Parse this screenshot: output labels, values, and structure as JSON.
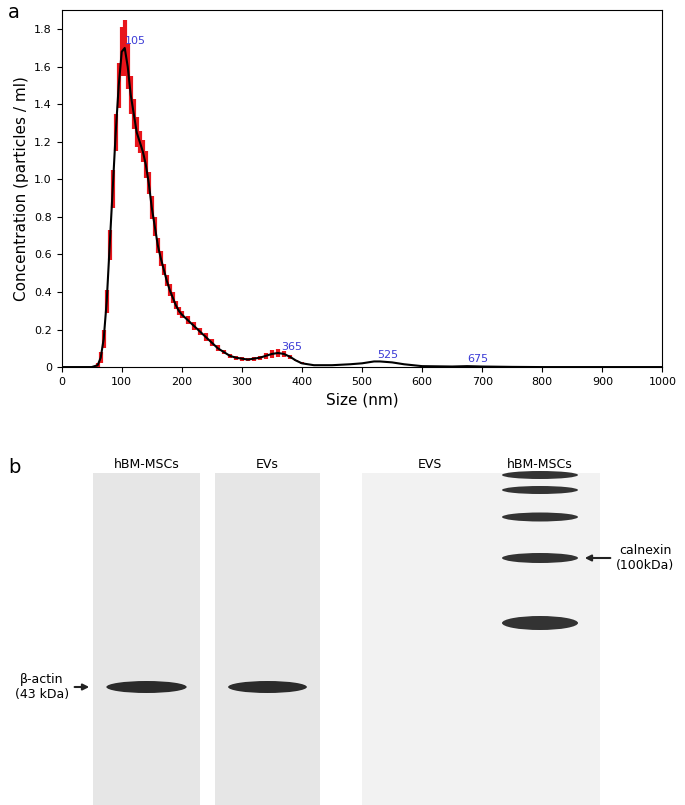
{
  "chart_data": {
    "type": "line",
    "x_label": "Size (nm)",
    "y_label": "Concentration (particles / ml)",
    "x": [
      0,
      50,
      60,
      65,
      70,
      75,
      80,
      85,
      90,
      95,
      100,
      105,
      110,
      115,
      120,
      125,
      130,
      135,
      140,
      145,
      150,
      155,
      160,
      165,
      170,
      175,
      180,
      185,
      190,
      195,
      200,
      210,
      220,
      230,
      240,
      250,
      260,
      270,
      280,
      290,
      300,
      310,
      320,
      330,
      340,
      350,
      360,
      370,
      380,
      390,
      400,
      420,
      450,
      480,
      500,
      520,
      530,
      550,
      570,
      600,
      650,
      675,
      700,
      750,
      800,
      900,
      1000
    ],
    "values": [
      0,
      0,
      0.01,
      0.05,
      0.15,
      0.35,
      0.65,
      0.95,
      1.25,
      1.5,
      1.68,
      1.7,
      1.6,
      1.45,
      1.35,
      1.25,
      1.2,
      1.15,
      1.08,
      0.98,
      0.85,
      0.75,
      0.65,
      0.58,
      0.52,
      0.46,
      0.41,
      0.37,
      0.33,
      0.3,
      0.28,
      0.25,
      0.22,
      0.19,
      0.16,
      0.13,
      0.1,
      0.08,
      0.06,
      0.05,
      0.045,
      0.04,
      0.045,
      0.05,
      0.06,
      0.07,
      0.075,
      0.07,
      0.055,
      0.035,
      0.02,
      0.01,
      0.01,
      0.015,
      0.02,
      0.03,
      0.03,
      0.025,
      0.015,
      0.005,
      0.003,
      0.005,
      0.003,
      0.001,
      0,
      0,
      0
    ],
    "errors": [
      0,
      0,
      0.01,
      0.03,
      0.05,
      0.06,
      0.08,
      0.1,
      0.1,
      0.12,
      0.13,
      0.15,
      0.12,
      0.1,
      0.08,
      0.08,
      0.06,
      0.06,
      0.07,
      0.06,
      0.06,
      0.05,
      0.04,
      0.04,
      0.03,
      0.03,
      0.03,
      0.03,
      0.02,
      0.02,
      0.02,
      0.02,
      0.02,
      0.02,
      0.02,
      0.02,
      0.015,
      0.01,
      0.01,
      0.01,
      0.01,
      0.01,
      0.01,
      0.01,
      0.015,
      0.02,
      0.02,
      0.015,
      0.01,
      0.005,
      0.005,
      0,
      0,
      0,
      0,
      0,
      0,
      0,
      0,
      0,
      0,
      0,
      0,
      0,
      0,
      0,
      0
    ],
    "peaks": [
      105,
      365,
      525,
      675
    ],
    "color": "#000000",
    "xlim": [
      0,
      1000
    ],
    "xticks": [
      0,
      100,
      200,
      300,
      400,
      500,
      600,
      700,
      800,
      900,
      1000
    ],
    "ylim": [
      0,
      1.9
    ],
    "yticks": [
      0,
      0.2,
      0.4,
      0.6,
      0.8,
      1.0,
      1.2,
      1.4,
      1.6,
      1.8
    ],
    "grid": false
  },
  "panel_labels": [
    "a",
    "b"
  ],
  "western_blot": {
    "left": {
      "lanes": [
        "hBM-MSCs",
        "EVs"
      ],
      "protein": "β-actin\n(43 kDa)"
    },
    "right": {
      "lanes": [
        "EVS",
        "hBM-MSCs"
      ],
      "protein": "calnexin\n(100kDa)"
    }
  }
}
